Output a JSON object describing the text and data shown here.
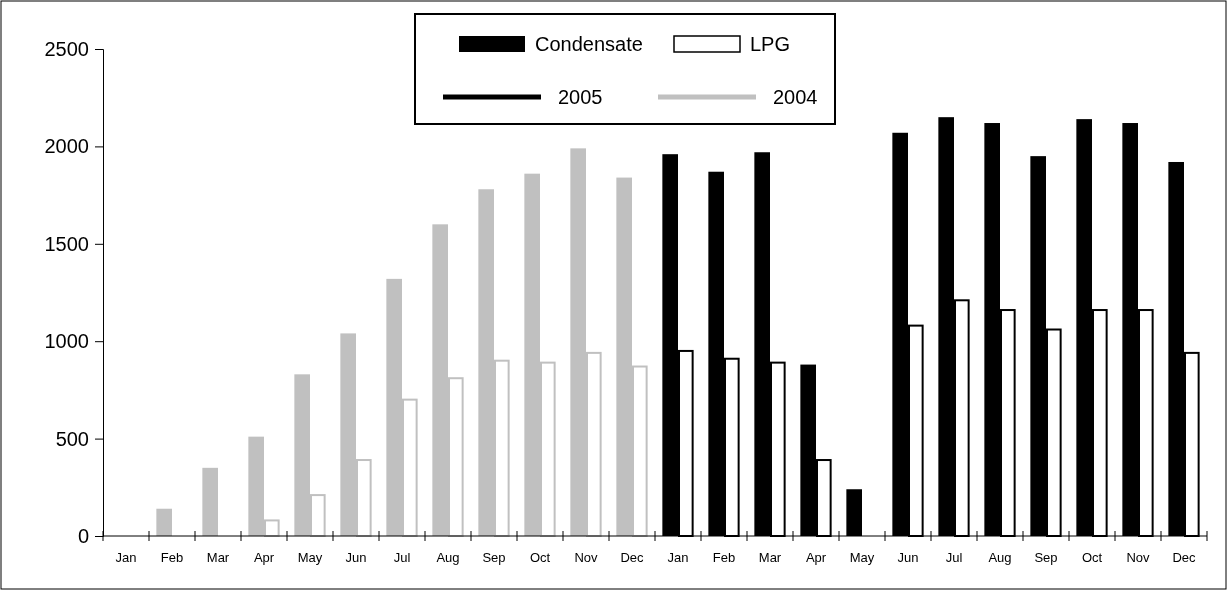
{
  "chart_data": {
    "type": "bar",
    "categories": [
      "Jan",
      "Feb",
      "Mar",
      "Apr",
      "May",
      "Jun",
      "Jul",
      "Aug",
      "Sep",
      "Oct",
      "Nov",
      "Dec",
      "Jan",
      "Feb",
      "Mar",
      "Apr",
      "May",
      "Jun",
      "Jul",
      "Aug",
      "Sep",
      "Oct",
      "Nov",
      "Dec"
    ],
    "series": [
      {
        "name": "Condensate",
        "color": "#000000",
        "colors": [
          "#c0c0c0",
          "#c0c0c0",
          "#c0c0c0",
          "#c0c0c0",
          "#c0c0c0",
          "#c0c0c0",
          "#c0c0c0",
          "#c0c0c0",
          "#c0c0c0",
          "#c0c0c0",
          "#c0c0c0",
          "#c0c0c0",
          "#000000",
          "#000000",
          "#000000",
          "#000000",
          "#000000",
          "#000000",
          "#000000",
          "#000000",
          "#000000",
          "#000000",
          "#000000",
          "#000000"
        ],
        "values": [
          0,
          140,
          350,
          510,
          830,
          1040,
          1320,
          1600,
          1780,
          1860,
          1990,
          1840,
          1960,
          1870,
          1970,
          880,
          240,
          2070,
          2150,
          2120,
          1950,
          2140,
          2120,
          1920
        ]
      },
      {
        "name": "LPG",
        "color": "#ffffff",
        "values": [
          0,
          0,
          0,
          80,
          210,
          390,
          700,
          810,
          900,
          890,
          940,
          870,
          950,
          910,
          890,
          390,
          0,
          1080,
          1210,
          1160,
          1060,
          1160,
          1160,
          940
        ]
      },
      {
        "name": "2005",
        "type": "line",
        "color": "#000000",
        "values": [
          null,
          null,
          null,
          null,
          null,
          null,
          null,
          null,
          null,
          null,
          null,
          null,
          null,
          null,
          null,
          null,
          null,
          null,
          null,
          null,
          null,
          null,
          null,
          null
        ]
      },
      {
        "name": "2004",
        "type": "line",
        "color": "#c0c0c0",
        "values": [
          null,
          null,
          null,
          null,
          null,
          null,
          null,
          null,
          null,
          null,
          null,
          null,
          null,
          null,
          null,
          null,
          null,
          null,
          null,
          null,
          null,
          null,
          null,
          null
        ]
      }
    ],
    "ylim": [
      0,
      2500
    ],
    "yticks": [
      0,
      500,
      1000,
      1500,
      2000,
      2500
    ],
    "grid": false,
    "legend": "top"
  }
}
